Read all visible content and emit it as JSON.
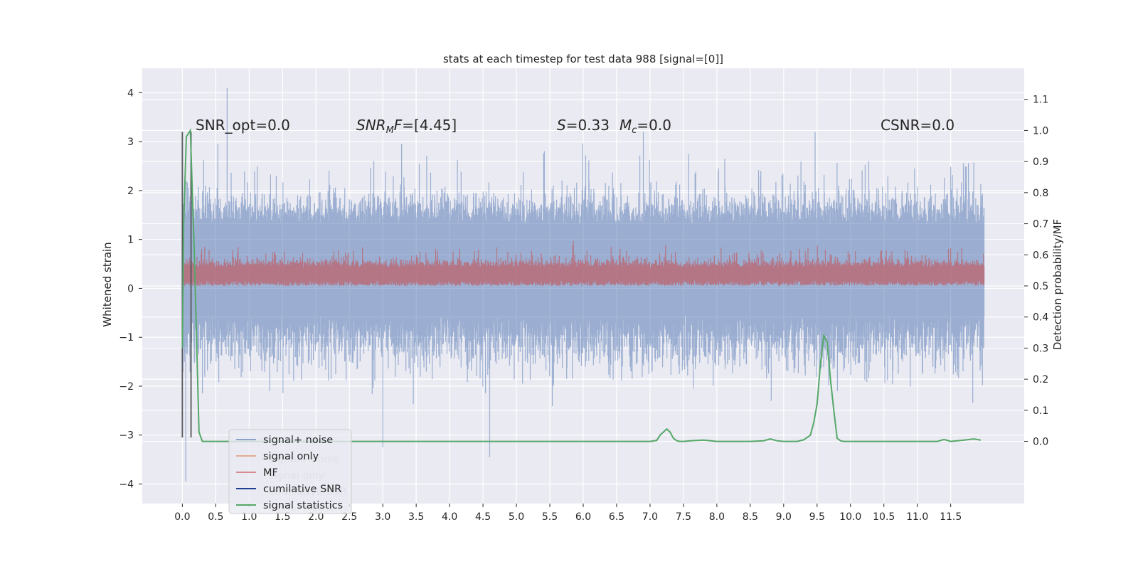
{
  "chart_data": {
    "type": "line",
    "title": "stats at each timestep for test data 988 [signal=[0]]",
    "xlabel": "",
    "ylabel": "Whitened strain",
    "ylabel_right": "Detection probability/MF",
    "xlim": [
      -0.6,
      12.6
    ],
    "ylim": [
      -4.4,
      4.5
    ],
    "ylim_right": [
      -0.2,
      1.2
    ],
    "x_ticks": [
      "0.0",
      "0.5",
      "1.0",
      "1.5",
      "2.0",
      "2.5",
      "3.0",
      "3.5",
      "4.0",
      "4.5",
      "5.0",
      "5.5",
      "6.0",
      "6.5",
      "7.0",
      "7.5",
      "8.0",
      "8.5",
      "9.0",
      "9.5",
      "10.0",
      "10.5",
      "11.0",
      "11.5"
    ],
    "y_ticks": [
      "4",
      "3",
      "2",
      "1",
      "0",
      "−1",
      "−2",
      "−3",
      "−4"
    ],
    "y_ticks_right": [
      "1.1",
      "1.0",
      "0.9",
      "0.8",
      "0.7",
      "0.6",
      "0.5",
      "0.4",
      "0.3",
      "0.2",
      "0.1",
      "0.0"
    ],
    "annotations": {
      "snr_opt": "SNR_opt=0.0",
      "snr_mf_label": "SNR",
      "snr_mf_sub": "M",
      "snr_mf_rest": "F=[4.45]",
      "s_label": "S",
      "s_value": "=0.33",
      "mc_label": "M",
      "mc_sub": "c",
      "mc_value": "=0.0",
      "csnr": "CSNR=0.0"
    },
    "legend": {
      "placement": "lower-left",
      "entries": [
        "signal+ noise",
        "signal only",
        "MF",
        "cumilative SNR",
        "signal statistics"
      ],
      "ghost_entries": [
        "signal+ noise",
        "signal only",
        "cumilative SNR",
        "signal statistics"
      ]
    },
    "series": [
      {
        "name": "signal+ noise",
        "color": "#4c72b0",
        "style": "dense noise band",
        "x_range": [
          0.0,
          12.0
        ],
        "envelope_core": [
          -0.55,
          1.3
        ],
        "envelope_typical": [
          -2.0,
          2.2
        ],
        "peaks": [
          [
            0.67,
            4.1
          ],
          [
            0.05,
            -3.95
          ],
          [
            3.0,
            -3.25
          ],
          [
            4.6,
            -3.45
          ],
          [
            9.47,
            3.2
          ],
          [
            6.9,
            3.2
          ]
        ]
      },
      {
        "name": "MF",
        "color": "#c44e52",
        "style": "dense noise band",
        "x_range": [
          0.0,
          12.0
        ],
        "envelope_typical": [
          0.0,
          0.85
        ]
      },
      {
        "name": "cumilative SNR",
        "color": "#55585c",
        "style": "vertical lines",
        "x": [
          0.0,
          0.13
        ],
        "y_range": [
          -3.05,
          3.2
        ]
      },
      {
        "name": "signal statistics",
        "color": "#55a868",
        "axis": "right",
        "x": [
          0.0,
          0.02,
          0.06,
          0.12,
          0.18,
          0.25,
          0.3,
          0.5,
          1.0,
          2.0,
          3.0,
          4.0,
          5.0,
          6.0,
          7.0,
          7.1,
          7.15,
          7.2,
          7.25,
          7.3,
          7.35,
          7.4,
          7.45,
          7.5,
          7.6,
          7.8,
          8.0,
          8.5,
          8.7,
          8.8,
          8.9,
          9.0,
          9.2,
          9.3,
          9.4,
          9.45,
          9.5,
          9.55,
          9.6,
          9.65,
          9.7,
          9.75,
          9.8,
          9.85,
          9.9,
          10.0,
          10.5,
          11.0,
          11.3,
          11.4,
          11.5,
          11.7,
          11.85,
          11.95
        ],
        "y": [
          0.3,
          0.7,
          0.98,
          1.0,
          0.6,
          0.03,
          0.0,
          0.0,
          0.0,
          0.0,
          0.0,
          0.0,
          0.0,
          0.0,
          0.0,
          0.003,
          0.02,
          0.03,
          0.04,
          0.03,
          0.01,
          0.002,
          0.0,
          0.0,
          0.002,
          0.004,
          0.0,
          0.0,
          0.002,
          0.008,
          0.002,
          0.0,
          0.0,
          0.005,
          0.02,
          0.06,
          0.12,
          0.25,
          0.34,
          0.32,
          0.2,
          0.1,
          0.01,
          0.002,
          0.0,
          0.0,
          0.0,
          0.0,
          0.0,
          0.006,
          0.0,
          0.004,
          0.008,
          0.004
        ]
      }
    ],
    "grid": true
  }
}
